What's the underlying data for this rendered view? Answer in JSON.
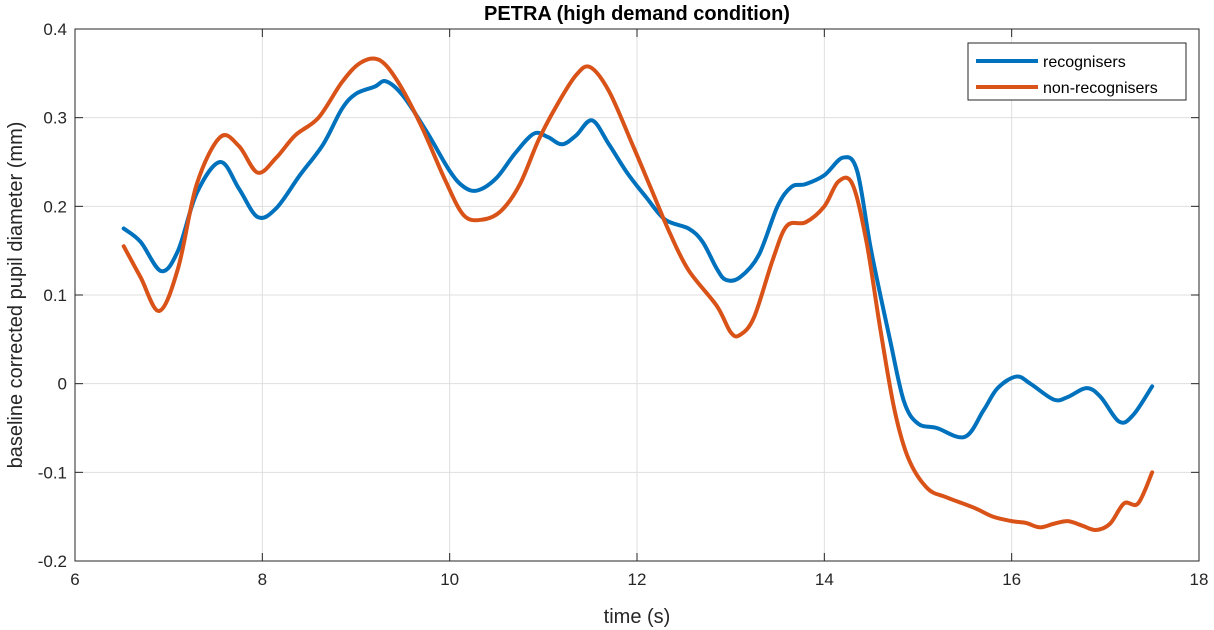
{
  "chart_data": {
    "type": "line",
    "title": "PETRA (high demand condition)",
    "xlabel": "time (s)",
    "ylabel": "baseline corrected pupil diameter (mm)",
    "xlim": [
      6,
      18
    ],
    "ylim": [
      -0.2,
      0.4
    ],
    "xticks": [
      6,
      8,
      10,
      12,
      14,
      16,
      18
    ],
    "yticks": [
      -0.2,
      -0.1,
      0,
      0.1,
      0.2,
      0.3,
      0.4
    ],
    "xtick_labels": [
      "6",
      "8",
      "10",
      "12",
      "14",
      "16",
      "18"
    ],
    "ytick_labels": [
      "-0.2",
      "-0.1",
      "0",
      "0.1",
      "0.2",
      "0.3",
      "0.4"
    ],
    "grid": true,
    "legend_position": "top-right",
    "series": [
      {
        "name": "recognisers",
        "color": "#0072BD",
        "x": [
          6.52,
          6.7,
          6.92,
          7.1,
          7.3,
          7.55,
          7.75,
          7.95,
          8.15,
          8.4,
          8.65,
          8.85,
          9.0,
          9.2,
          9.32,
          9.5,
          9.75,
          10.0,
          10.15,
          10.3,
          10.5,
          10.7,
          10.9,
          11.05,
          11.2,
          11.35,
          11.52,
          11.7,
          11.9,
          12.1,
          12.3,
          12.55,
          12.7,
          12.85,
          12.95,
          13.1,
          13.3,
          13.5,
          13.65,
          13.8,
          14.0,
          14.2,
          14.35,
          14.5,
          14.7,
          14.85,
          15.0,
          15.2,
          15.5,
          15.7,
          15.85,
          16.05,
          16.2,
          16.45,
          16.6,
          16.8,
          16.95,
          17.15,
          17.3,
          17.5
        ],
        "y": [
          0.175,
          0.16,
          0.127,
          0.15,
          0.215,
          0.25,
          0.22,
          0.188,
          0.198,
          0.235,
          0.27,
          0.31,
          0.327,
          0.335,
          0.341,
          0.325,
          0.285,
          0.24,
          0.222,
          0.218,
          0.232,
          0.26,
          0.282,
          0.278,
          0.27,
          0.28,
          0.297,
          0.27,
          0.237,
          0.21,
          0.185,
          0.175,
          0.16,
          0.13,
          0.117,
          0.12,
          0.145,
          0.2,
          0.222,
          0.225,
          0.235,
          0.255,
          0.24,
          0.15,
          0.05,
          -0.02,
          -0.045,
          -0.05,
          -0.06,
          -0.03,
          -0.005,
          0.008,
          0.0,
          -0.018,
          -0.015,
          -0.005,
          -0.015,
          -0.043,
          -0.035,
          -0.003
        ]
      },
      {
        "name": "non-recognisers",
        "color": "#D95319",
        "x": [
          6.52,
          6.7,
          6.9,
          7.1,
          7.3,
          7.55,
          7.75,
          7.95,
          8.15,
          8.35,
          8.6,
          8.85,
          9.05,
          9.25,
          9.45,
          9.7,
          9.95,
          10.15,
          10.35,
          10.55,
          10.75,
          10.95,
          11.15,
          11.35,
          11.5,
          11.7,
          11.95,
          12.15,
          12.35,
          12.55,
          12.85,
          13.0,
          13.1,
          13.25,
          13.45,
          13.6,
          13.8,
          14.0,
          14.15,
          14.3,
          14.45,
          14.6,
          14.75,
          14.9,
          15.1,
          15.3,
          15.6,
          15.8,
          16.0,
          16.15,
          16.3,
          16.45,
          16.6,
          16.75,
          16.9,
          17.05,
          17.2,
          17.35,
          17.5
        ],
        "y": [
          0.155,
          0.12,
          0.082,
          0.13,
          0.225,
          0.278,
          0.268,
          0.238,
          0.255,
          0.28,
          0.3,
          0.34,
          0.362,
          0.365,
          0.34,
          0.29,
          0.23,
          0.19,
          0.185,
          0.195,
          0.225,
          0.275,
          0.315,
          0.348,
          0.357,
          0.33,
          0.27,
          0.22,
          0.17,
          0.128,
          0.088,
          0.058,
          0.055,
          0.075,
          0.14,
          0.178,
          0.182,
          0.2,
          0.228,
          0.225,
          0.16,
          0.06,
          -0.03,
          -0.085,
          -0.118,
          -0.128,
          -0.14,
          -0.15,
          -0.155,
          -0.157,
          -0.162,
          -0.158,
          -0.155,
          -0.16,
          -0.165,
          -0.158,
          -0.135,
          -0.135,
          -0.1
        ]
      }
    ]
  }
}
